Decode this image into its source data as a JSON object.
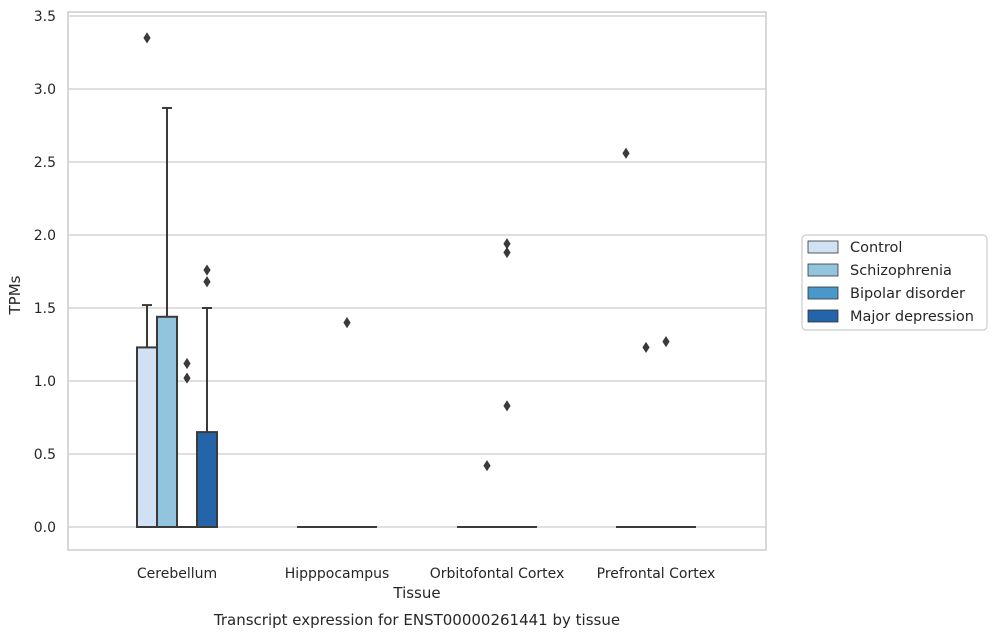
{
  "chart_data": {
    "type": "box",
    "xlabel": "Tissue",
    "ylabel": "TPMs",
    "caption": "Transcript expression for ENST00000261441 by tissue",
    "ylim": [
      -0.16,
      3.53
    ],
    "yticks": [
      "0.0",
      "0.5",
      "1.0",
      "1.5",
      "2.0",
      "2.5",
      "3.0",
      "3.5"
    ],
    "grid": true,
    "legend_position": "right",
    "categories": [
      "Cerebellum",
      "Hipppocampus",
      "Orbitofontal Cortex",
      "Prefrontal Cortex"
    ],
    "series": [
      {
        "name": "Control",
        "color": "#cfe1f2",
        "boxes": [
          {
            "q1": 0,
            "median": 0,
            "q3": 1.23,
            "whisker_low": 0,
            "whisker_high": 1.52,
            "outliers": []
          },
          {
            "q1": 0,
            "median": 0,
            "q3": 0,
            "whisker_low": 0,
            "whisker_high": 0,
            "outliers": []
          },
          {
            "q1": 0,
            "median": 0,
            "q3": 0,
            "whisker_low": 0,
            "whisker_high": 0,
            "outliers": []
          },
          {
            "q1": 0,
            "median": 0,
            "q3": 0,
            "whisker_low": 0,
            "whisker_high": 0,
            "outliers": []
          }
        ],
        "outliers_top": [
          3.35
        ]
      },
      {
        "name": "Schizophrenia",
        "color": "#93c4de",
        "boxes": [
          {
            "q1": 0,
            "median": 0,
            "q3": 1.44,
            "whisker_low": 0,
            "whisker_high": 2.87,
            "outliers": []
          },
          {
            "q1": 0,
            "median": 0,
            "q3": 0,
            "whisker_low": 0,
            "whisker_high": 0,
            "outliers": []
          },
          {
            "q1": 0,
            "median": 0,
            "q3": 0,
            "whisker_low": 0,
            "whisker_high": 0,
            "outliers": [
              0.42
            ]
          },
          {
            "q1": 0,
            "median": 0,
            "q3": 0,
            "whisker_low": 0,
            "whisker_high": 0,
            "outliers": [
              1.23
            ]
          }
        ]
      },
      {
        "name": "Bipolar disorder",
        "color": "#4a98c9",
        "boxes": [
          {
            "q1": 0,
            "median": 0,
            "q3": 0,
            "whisker_low": 0,
            "whisker_high": 0,
            "outliers": [
              1.02,
              1.12
            ]
          },
          {
            "q1": 0,
            "median": 0,
            "q3": 0,
            "whisker_low": 0,
            "whisker_high": 0,
            "outliers": [
              1.4
            ]
          },
          {
            "q1": 0,
            "median": 0,
            "q3": 0,
            "whisker_low": 0,
            "whisker_high": 0,
            "outliers": [
              0.83,
              1.88,
              1.94
            ]
          },
          {
            "q1": 0,
            "median": 0,
            "q3": 0,
            "whisker_low": 0,
            "whisker_high": 0,
            "outliers": [
              1.27
            ]
          }
        ]
      },
      {
        "name": "Major depression",
        "color": "#2464a8",
        "boxes": [
          {
            "q1": 0,
            "median": 0,
            "q3": 0.65,
            "whisker_low": 0,
            "whisker_high": 1.5,
            "outliers": [
              1.68,
              1.76
            ]
          },
          {
            "q1": 0,
            "median": 0,
            "q3": 0,
            "whisker_low": 0,
            "whisker_high": 0,
            "outliers": []
          },
          {
            "q1": 0,
            "median": 0,
            "q3": 0,
            "whisker_low": 0,
            "whisker_high": 0,
            "outliers": []
          },
          {
            "q1": 0,
            "median": 0,
            "q3": 0,
            "whisker_low": 0,
            "whisker_high": 0,
            "outliers": []
          }
        ]
      }
    ],
    "extra_outliers": [
      {
        "category": "Prefrontal Cortex",
        "series": "Control",
        "value": 2.56
      }
    ]
  }
}
